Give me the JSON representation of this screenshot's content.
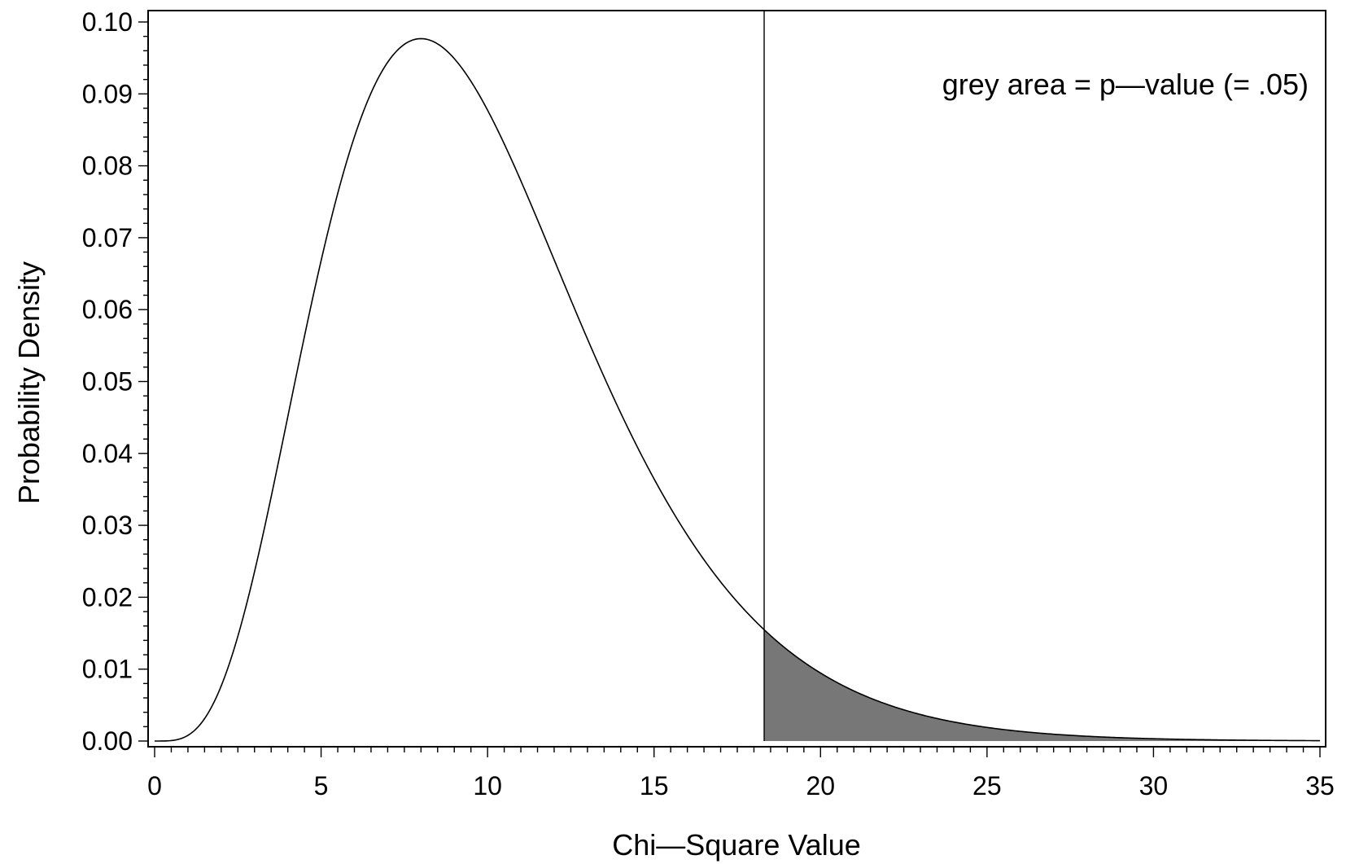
{
  "chart_data": {
    "type": "area",
    "distribution": "chi-square",
    "degrees_of_freedom": 10,
    "critical_value": 18.307,
    "p_value": 0.05,
    "xlim": [
      0,
      35
    ],
    "ylim": [
      0,
      0.1
    ],
    "x_ticks": [
      0,
      5,
      10,
      15,
      20,
      25,
      30,
      35
    ],
    "x_tick_labels": [
      "0",
      "5",
      "10",
      "15",
      "20",
      "25",
      "30",
      "35"
    ],
    "y_ticks": [
      0,
      0.01,
      0.02,
      0.03,
      0.04,
      0.05,
      0.06,
      0.07,
      0.08,
      0.09,
      0.1
    ],
    "y_tick_labels": [
      "0.00",
      "0.01",
      "0.02",
      "0.03",
      "0.04",
      "0.05",
      "0.06",
      "0.07",
      "0.08",
      "0.09",
      "0.10"
    ],
    "xlabel": "Chi—Square Value",
    "ylabel": "Probability Density",
    "annotation": "grey area = p—value (= .05)",
    "annotation_position": "top-right",
    "shade_color": "#777777",
    "line_color": "#000000",
    "grid": false
  }
}
